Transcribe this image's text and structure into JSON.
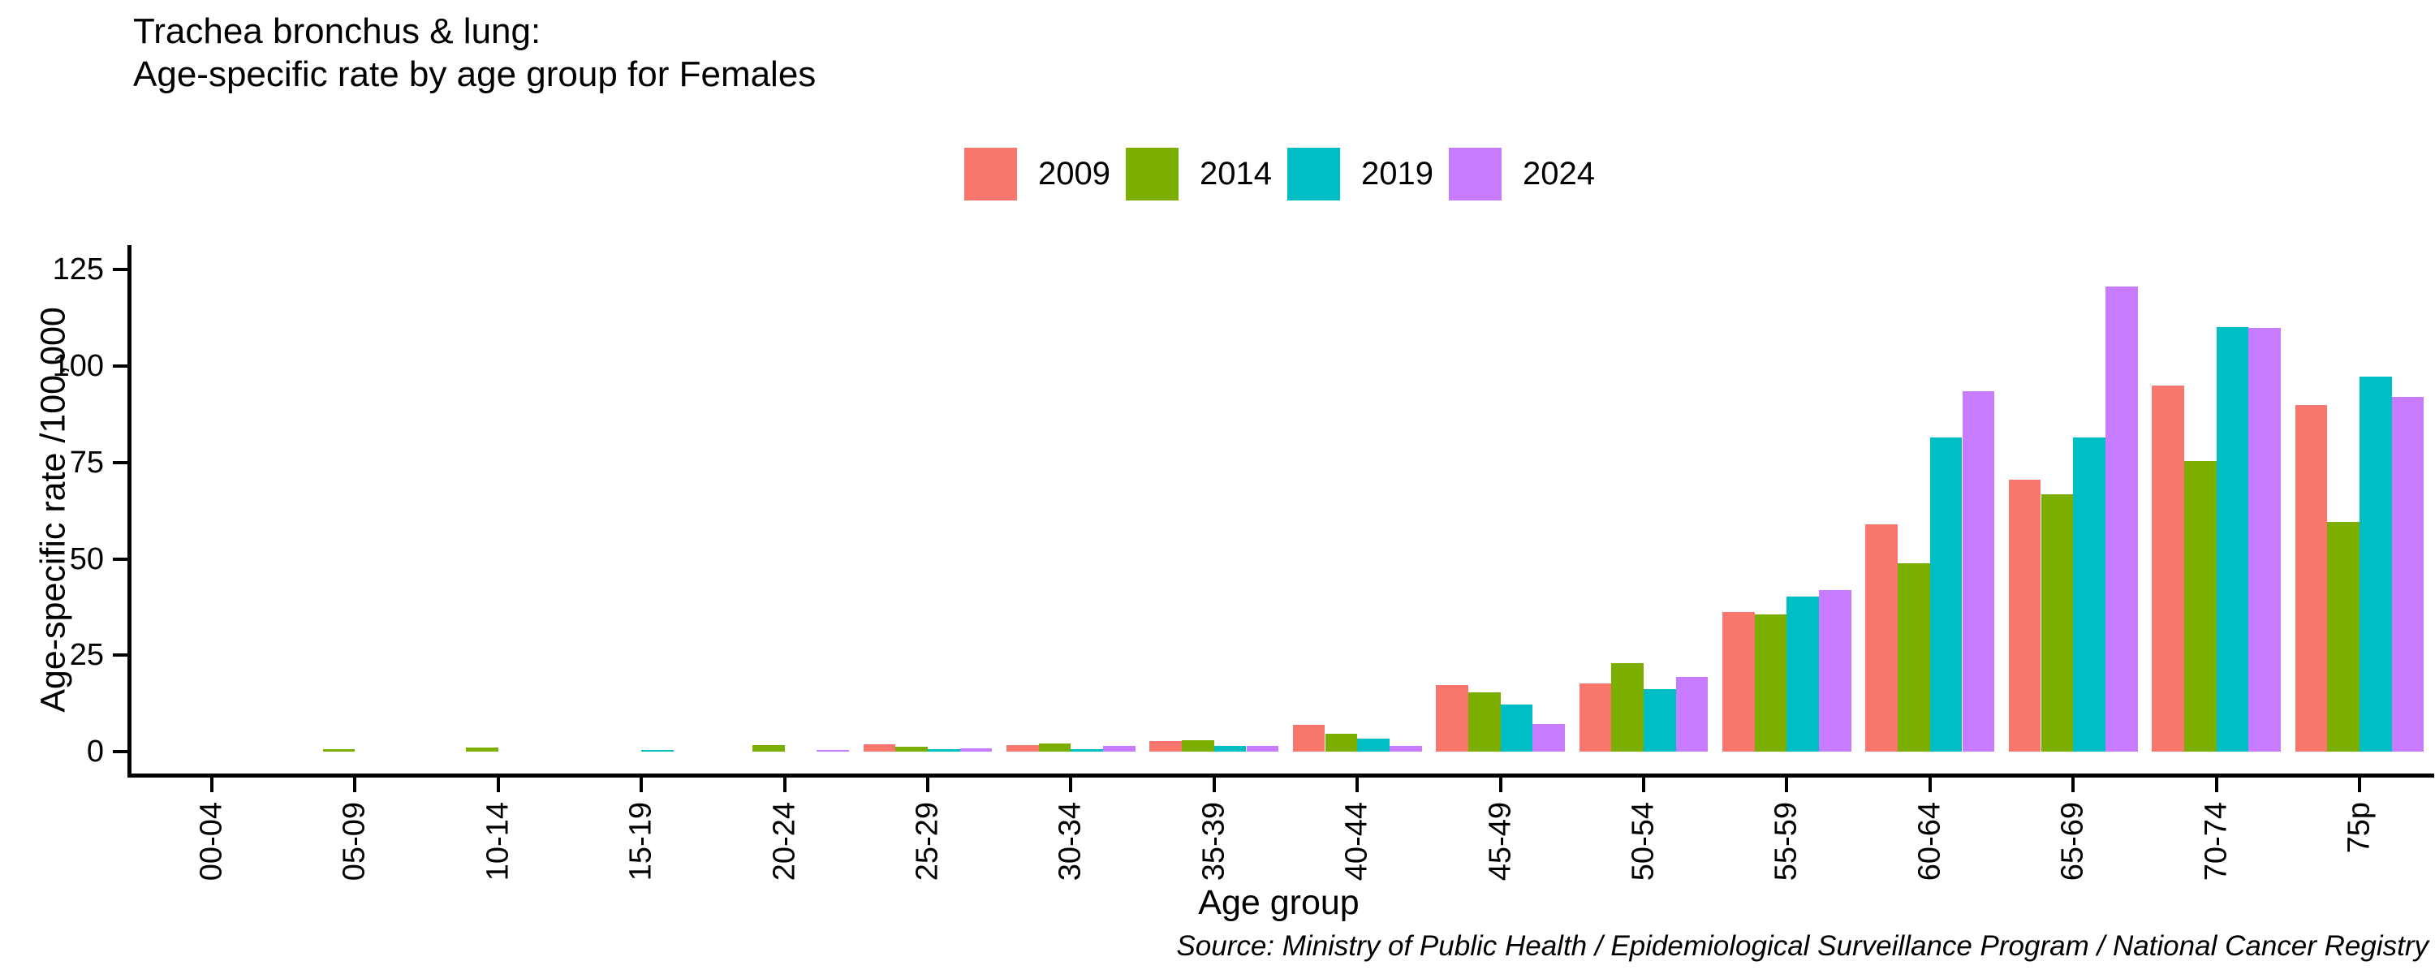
{
  "title": {
    "line1": "Trachea bronchus & lung:",
    "line2": "Age-specific rate by age group for Females"
  },
  "legend": {
    "position": "top",
    "items": [
      {
        "label": "2009",
        "color": "#F8766D"
      },
      {
        "label": "2014",
        "color": "#7CAE00"
      },
      {
        "label": "2019",
        "color": "#00BFC4"
      },
      {
        "label": "2024",
        "color": "#C77CFF"
      }
    ]
  },
  "y_axis": {
    "title": "Age-specific rate /100,000",
    "ticks": [
      0,
      25,
      50,
      75,
      100,
      125
    ],
    "range": [
      0,
      125
    ]
  },
  "x_axis": {
    "title": "Age group"
  },
  "source_note": "Source: Ministry of Public Health / Epidemiological Surveillance Program / National Cancer Registry",
  "chart_data": {
    "type": "bar",
    "title": "Trachea bronchus & lung: Age-specific rate by age group for Females",
    "xlabel": "Age group",
    "ylabel": "Age-specific rate /100,000",
    "ylim": [
      0,
      125
    ],
    "grid": false,
    "legend_position": "top",
    "categories": [
      "00-04",
      "05-09",
      "10-14",
      "15-19",
      "20-24",
      "25-29",
      "30-34",
      "35-39",
      "40-44",
      "45-49",
      "50-54",
      "55-59",
      "60-64",
      "65-69",
      "70-74",
      "75p"
    ],
    "series": [
      {
        "name": "2009",
        "color": "#F8766D",
        "values": [
          0,
          0,
          0,
          0,
          0,
          1.8,
          1.6,
          2.7,
          7.0,
          17.2,
          17.6,
          36.2,
          59.0,
          70.6,
          95.0,
          89.8
        ]
      },
      {
        "name": "2014",
        "color": "#7CAE00",
        "values": [
          0,
          0.7,
          1.0,
          0,
          1.6,
          1.2,
          2.1,
          3.0,
          4.7,
          15.3,
          22.9,
          35.6,
          48.8,
          66.7,
          75.3,
          59.6
        ]
      },
      {
        "name": "2019",
        "color": "#00BFC4",
        "values": [
          0,
          0,
          0,
          0.5,
          0,
          0.6,
          0.7,
          1.4,
          3.4,
          12.3,
          16.3,
          40.3,
          81.5,
          81.5,
          110.2,
          97.3
        ]
      },
      {
        "name": "2024",
        "color": "#C77CFF",
        "values": [
          0,
          0,
          0,
          0,
          0.4,
          0.9,
          1.5,
          1.4,
          1.5,
          7.2,
          19.4,
          42.0,
          93.5,
          120.7,
          109.9,
          92.1
        ]
      }
    ]
  }
}
